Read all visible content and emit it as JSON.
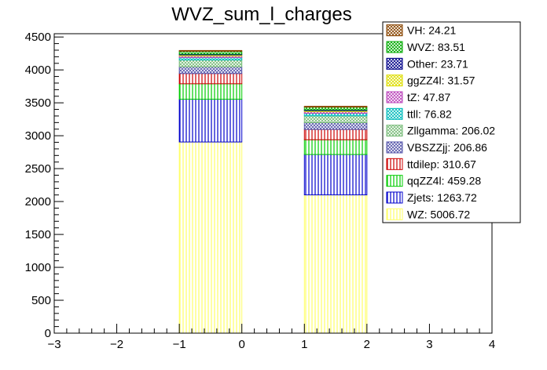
{
  "chart_data": {
    "type": "bar",
    "stacked": true,
    "title": "WVZ_sum_l_charges",
    "xlabel": "",
    "ylabel": "",
    "xlim": [
      -3,
      4
    ],
    "ylim": [
      0,
      4550
    ],
    "x_ticks": [
      -3,
      -2,
      -1,
      0,
      1,
      2,
      3,
      4
    ],
    "y_ticks": [
      0,
      500,
      1000,
      1500,
      2000,
      2500,
      3000,
      3500,
      4000,
      4500
    ],
    "bins": [
      {
        "low": -1,
        "high": 0
      },
      {
        "low": 1,
        "high": 2
      }
    ],
    "legend_position": "top-right",
    "series": [
      {
        "name": "WZ",
        "label": "WZ: 5006.72",
        "color": "#ffff66",
        "pattern": "vlines",
        "values": [
          2905,
          2101
        ]
      },
      {
        "name": "Zjets",
        "label": "Zjets: 1263.72",
        "color": "#0000cc",
        "pattern": "vlines",
        "values": [
          650,
          614
        ]
      },
      {
        "name": "qqZZ4l",
        "label": "qqZZ4l: 459.28",
        "color": "#00cc00",
        "pattern": "vlines",
        "values": [
          235,
          224
        ]
      },
      {
        "name": "ttdilep",
        "label": "ttdilep: 310.67",
        "color": "#cc0000",
        "pattern": "vlines",
        "values": [
          155,
          156
        ]
      },
      {
        "name": "VBSZZjj",
        "label": "VBSZZjj: 206.86",
        "color": "#5555aa",
        "pattern": "cross",
        "values": [
          103,
          104
        ]
      },
      {
        "name": "Zllgamma",
        "label": "Zllgamma: 206.02",
        "color": "#77bb77",
        "pattern": "cross",
        "values": [
          103,
          103
        ]
      },
      {
        "name": "ttll",
        "label": "ttll: 76.82",
        "color": "#00bbbb",
        "pattern": "cross",
        "values": [
          38,
          39
        ]
      },
      {
        "name": "tZ",
        "label": "tZ: 47.87",
        "color": "#bb44bb",
        "pattern": "cross",
        "values": [
          24,
          24
        ]
      },
      {
        "name": "ggZZ4l",
        "label": "ggZZ4l: 31.57",
        "color": "#dddd00",
        "pattern": "cross",
        "values": [
          16,
          16
        ]
      },
      {
        "name": "Other",
        "label": "Other: 23.71",
        "color": "#000088",
        "pattern": "cross",
        "values": [
          12,
          12
        ]
      },
      {
        "name": "WVZ",
        "label": "WVZ: 83.51",
        "color": "#00aa00",
        "pattern": "cross",
        "values": [
          42,
          42
        ]
      },
      {
        "name": "VH",
        "label": "VH: 24.21",
        "color": "#884400",
        "pattern": "cross",
        "values": [
          12,
          12
        ]
      }
    ]
  }
}
